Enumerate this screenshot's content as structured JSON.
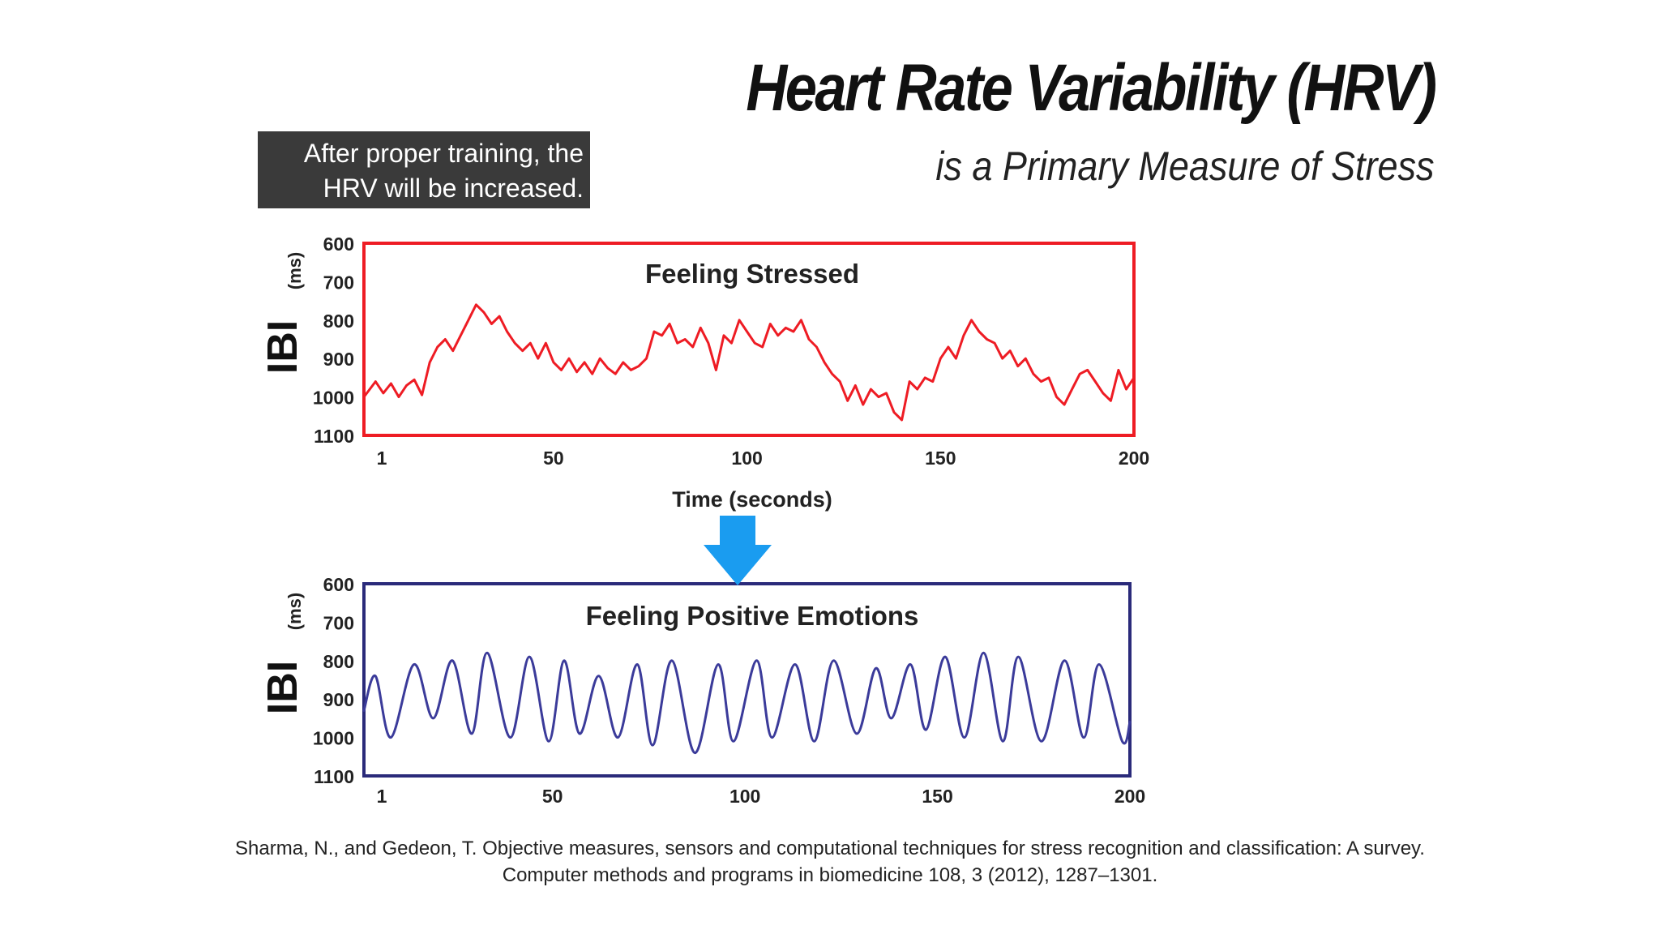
{
  "header": {
    "title": "Heart Rate Variability (HRV)",
    "subtitle": "is a Primary Measure of Stress"
  },
  "callout": {
    "line1": "After proper training, the",
    "line2": "HRV will be increased."
  },
  "citation": {
    "line1": "Sharma, N., and Gedeon, T. Objective measures, sensors and computational techniques for stress recognition and classification: A survey.",
    "line2": "Computer methods and programs in biomedicine 108, 3 (2012), 1287–1301."
  },
  "arrow_color": "#1a9cf0",
  "chart_data": [
    {
      "type": "line",
      "title": "Feeling Stressed",
      "xlabel": "Time (seconds)",
      "ylabel_main": "IBI",
      "ylabel_unit": "(ms)",
      "x_ticks": [
        1,
        50,
        100,
        150,
        200
      ],
      "y_ticks": [
        600,
        700,
        800,
        900,
        1000,
        1100
      ],
      "xlim": [
        1,
        200
      ],
      "ylim": [
        1100,
        600
      ],
      "y_inverted": true,
      "color": "#ee1c24",
      "border_color": "#ee1c24",
      "series": [
        {
          "x": [
            1,
            4,
            6,
            8,
            10,
            12,
            14,
            16,
            18,
            20,
            22,
            24,
            26,
            28,
            30,
            32,
            34,
            36,
            38,
            40,
            42,
            44,
            46,
            48,
            50,
            52,
            54,
            56,
            58,
            60,
            62,
            64,
            66,
            68,
            70,
            72,
            74,
            76,
            78,
            80,
            82,
            84,
            86,
            88,
            90,
            92,
            94,
            96,
            98,
            100,
            102,
            104,
            106,
            108,
            110,
            112,
            114,
            116,
            118,
            120,
            122,
            124,
            126,
            128,
            130,
            132,
            134,
            136,
            138,
            140,
            142,
            144,
            146,
            148,
            150,
            152,
            154,
            156,
            158,
            160,
            162,
            164,
            166,
            168,
            170,
            172,
            174,
            176,
            178,
            180,
            182,
            184,
            186,
            188,
            190,
            192,
            194,
            196,
            198,
            200
          ],
          "values": [
            1000,
            960,
            990,
            965,
            1000,
            970,
            955,
            995,
            910,
            870,
            850,
            880,
            840,
            800,
            760,
            780,
            810,
            790,
            830,
            860,
            880,
            860,
            900,
            860,
            910,
            930,
            900,
            935,
            910,
            940,
            900,
            925,
            940,
            910,
            930,
            920,
            900,
            830,
            840,
            810,
            860,
            850,
            870,
            820,
            860,
            930,
            840,
            860,
            800,
            830,
            860,
            870,
            810,
            840,
            820,
            830,
            800,
            850,
            870,
            910,
            940,
            960,
            1010,
            970,
            1020,
            980,
            1000,
            990,
            1040,
            1060,
            960,
            980,
            950,
            960,
            900,
            870,
            900,
            840,
            800,
            830,
            850,
            860,
            900,
            880,
            920,
            900,
            940,
            960,
            950,
            1000,
            1020,
            980,
            940,
            930,
            960,
            990,
            1010,
            930,
            980,
            950
          ]
        }
      ]
    },
    {
      "type": "line",
      "title": "Feeling Positive Emotions",
      "xlabel": "",
      "ylabel_main": "IBI",
      "ylabel_unit": "(ms)",
      "x_ticks": [
        1,
        50,
        100,
        150,
        200
      ],
      "y_ticks": [
        600,
        700,
        800,
        900,
        1000,
        1100
      ],
      "xlim": [
        1,
        200
      ],
      "ylim": [
        1100,
        600
      ],
      "y_inverted": true,
      "color": "#3b3b9a",
      "border_color": "#2a2a7a",
      "series": [
        {
          "x": [
            1,
            4,
            8,
            14,
            19,
            24,
            29,
            33,
            39,
            44,
            49,
            53,
            57,
            62,
            67,
            72,
            76,
            81,
            87,
            93,
            97,
            103,
            107,
            113,
            118,
            123,
            129,
            134,
            138,
            143,
            147,
            152,
            157,
            162,
            167,
            171,
            177,
            183,
            188,
            192,
            198,
            200
          ],
          "values": [
            930,
            840,
            1000,
            810,
            950,
            800,
            990,
            780,
            1000,
            790,
            1010,
            800,
            990,
            840,
            1000,
            810,
            1020,
            800,
            1040,
            810,
            1010,
            800,
            1000,
            810,
            1010,
            800,
            990,
            820,
            950,
            810,
            980,
            790,
            1000,
            780,
            1010,
            790,
            1010,
            800,
            1000,
            810,
            1010,
            960
          ]
        }
      ]
    }
  ]
}
